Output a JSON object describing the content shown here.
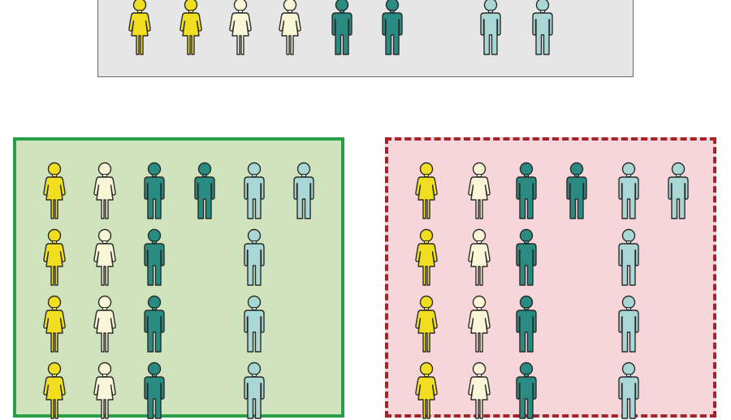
{
  "colors": {
    "female_yellow": "#f2de21",
    "female_cream": "#f8f6d6",
    "male_teal": "#2a8b82",
    "male_lightblue": "#a9d7d6",
    "outline": "#2b2b2b",
    "top_panel_bg": "#e6e6e6",
    "left_panel_bg": "#cfe3bd",
    "left_panel_border": "#27a047",
    "right_panel_bg": "#f7d6d9",
    "right_panel_border": "#a5232b"
  },
  "icons": {
    "female": "female-person-icon",
    "male": "male-person-icon"
  },
  "groups": {
    "top": {
      "border_style": "solid",
      "columns": [
        {
          "gender": "female",
          "color": "female_yellow",
          "count": 1
        },
        {
          "gender": "female",
          "color": "female_yellow",
          "count": 1
        },
        {
          "gender": "female",
          "color": "female_cream",
          "count": 1
        },
        {
          "gender": "female",
          "color": "female_cream",
          "count": 1
        },
        {
          "gender": "male",
          "color": "male_teal",
          "count": 1
        },
        {
          "gender": "male",
          "color": "male_teal",
          "count": 1
        },
        {
          "gender": "male",
          "color": "male_lightblue",
          "count": 1
        },
        {
          "gender": "male",
          "color": "male_lightblue",
          "count": 1
        }
      ]
    },
    "left": {
      "border_style": "solid",
      "columns": [
        {
          "gender": "female",
          "color": "female_yellow",
          "count": 4
        },
        {
          "gender": "female",
          "color": "female_cream",
          "count": 4
        },
        {
          "gender": "male",
          "color": "male_teal",
          "count": 4
        },
        {
          "gender": "male",
          "color": "male_teal",
          "count": 1
        },
        {
          "gender": "male",
          "color": "male_lightblue",
          "count": 4
        },
        {
          "gender": "male",
          "color": "male_lightblue",
          "count": 1
        }
      ]
    },
    "right": {
      "border_style": "dashed",
      "columns": [
        {
          "gender": "female",
          "color": "female_yellow",
          "count": 4
        },
        {
          "gender": "female",
          "color": "female_cream",
          "count": 4
        },
        {
          "gender": "male",
          "color": "male_teal",
          "count": 4
        },
        {
          "gender": "male",
          "color": "male_teal",
          "count": 1
        },
        {
          "gender": "male",
          "color": "male_lightblue",
          "count": 4
        },
        {
          "gender": "male",
          "color": "male_lightblue",
          "count": 1
        }
      ]
    }
  }
}
